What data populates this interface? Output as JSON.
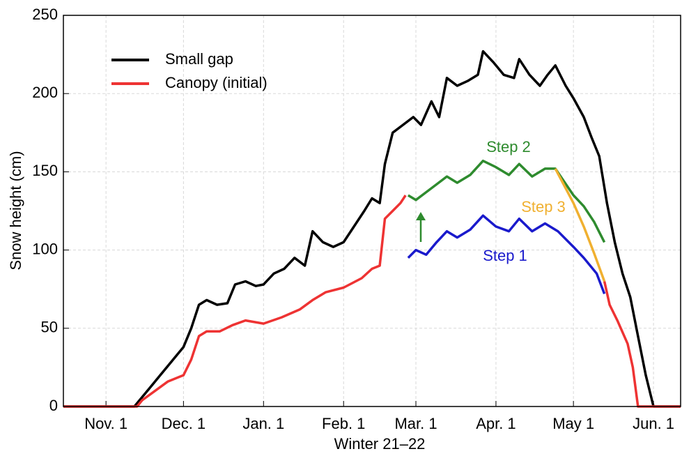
{
  "chart_data": {
    "type": "line",
    "xlabel": "Winter 21–22",
    "ylabel": "Snow height (cm)",
    "xlim": [
      -16.5,
      222.5
    ],
    "ylim": [
      0,
      250
    ],
    "xticks": [
      {
        "value": 0,
        "label": "Nov. 1"
      },
      {
        "value": 30,
        "label": "Dec. 1"
      },
      {
        "value": 61,
        "label": "Jan. 1"
      },
      {
        "value": 92,
        "label": "Feb. 1"
      },
      {
        "value": 120,
        "label": "Mar. 1"
      },
      {
        "value": 151,
        "label": "Apr. 1"
      },
      {
        "value": 181,
        "label": "May 1"
      },
      {
        "value": 212,
        "label": "Jun. 1"
      }
    ],
    "yticks": [
      0,
      50,
      100,
      150,
      200,
      250
    ],
    "grid": true,
    "legend_position": "upper left",
    "series": [
      {
        "name": "Small gap",
        "color": "#000000",
        "legend": true,
        "x": [
          -16.5,
          11,
          17,
          21,
          25,
          30,
          33,
          36,
          39,
          43,
          47,
          50,
          54,
          58,
          61,
          65,
          69,
          73,
          77,
          80,
          84,
          88,
          92,
          96,
          100,
          103,
          106,
          108,
          111,
          115,
          119,
          122,
          126,
          129,
          132,
          136,
          140,
          144,
          146,
          150,
          154,
          158,
          160,
          164,
          168,
          171,
          174,
          178,
          181,
          185,
          188,
          191,
          194,
          197,
          200,
          203,
          206,
          209,
          212,
          222.5
        ],
        "values": [
          0,
          0,
          12,
          20,
          28,
          38,
          50,
          65,
          68,
          65,
          66,
          78,
          80,
          77,
          78,
          85,
          88,
          95,
          90,
          112,
          105,
          102,
          105,
          115,
          125,
          133,
          130,
          155,
          175,
          180,
          185,
          180,
          195,
          185,
          210,
          205,
          208,
          212,
          227,
          220,
          212,
          210,
          222,
          212,
          205,
          212,
          218,
          205,
          197,
          185,
          172,
          160,
          130,
          105,
          85,
          70,
          45,
          20,
          0,
          0
        ]
      },
      {
        "name": "Canopy (initial)",
        "color": "#ee3333",
        "legend": true,
        "x": [
          -16.5,
          12,
          14,
          19,
          24,
          30,
          33,
          36,
          39,
          44,
          49,
          54,
          61,
          68,
          75,
          80,
          85,
          92,
          99,
          103,
          106,
          108,
          111,
          114,
          116,
          150,
          193,
          195,
          198,
          202,
          204,
          206,
          222.5
        ],
        "values": [
          0,
          0,
          4,
          10,
          16,
          20,
          30,
          45,
          48,
          48,
          52,
          55,
          53,
          57,
          62,
          68,
          73,
          76,
          82,
          88,
          90,
          120,
          125,
          130,
          135,
          null,
          80,
          65,
          55,
          40,
          25,
          0,
          0
        ]
      },
      {
        "name": "Step 1",
        "color": "#1a1acc",
        "legend": false,
        "x": [
          117,
          120,
          124,
          128,
          132,
          136,
          141,
          146,
          151,
          156,
          160,
          165,
          170,
          175,
          181,
          185,
          190,
          193
        ],
        "values": [
          95,
          100,
          97,
          105,
          112,
          108,
          113,
          122,
          115,
          112,
          120,
          112,
          117,
          112,
          102,
          95,
          85,
          72
        ]
      },
      {
        "name": "Step 2",
        "color": "#2e8b2e",
        "legend": false,
        "x": [
          117,
          120,
          124,
          128,
          132,
          136,
          141,
          146,
          151,
          156,
          160,
          165,
          170,
          174,
          181,
          185,
          189,
          193
        ],
        "values": [
          135,
          132,
          137,
          142,
          147,
          143,
          148,
          157,
          153,
          148,
          155,
          147,
          152,
          152,
          135,
          128,
          118,
          105
        ]
      },
      {
        "name": "Step 3",
        "color": "#f0b030",
        "legend": false,
        "x": [
          174,
          181,
          185,
          189,
          193
        ],
        "values": [
          152,
          130,
          115,
          98,
          80
        ]
      }
    ]
  }
}
